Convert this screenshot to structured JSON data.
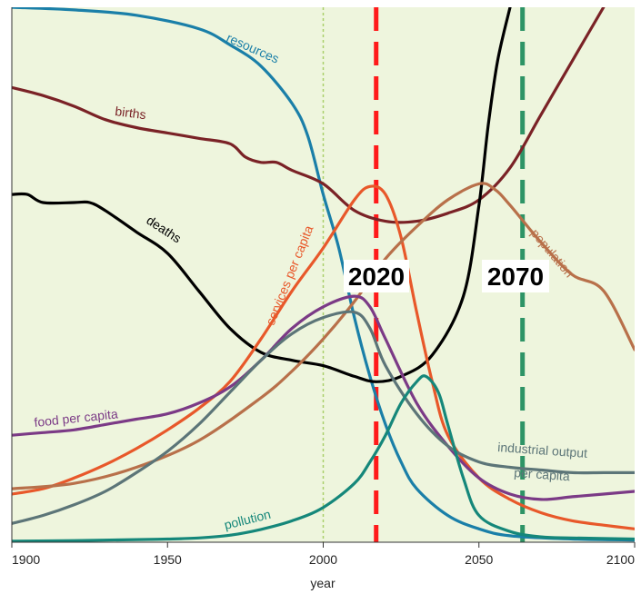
{
  "chart_data": {
    "type": "line",
    "title": "",
    "xlabel": "year",
    "ylabel": "",
    "xlim": [
      1900,
      2100
    ],
    "ylim": [
      0,
      100
    ],
    "x_ticks": [
      "1900",
      "1950",
      "2000",
      "2050",
      "2100"
    ],
    "grid": false,
    "background": "#eef5dd",
    "markers": [
      {
        "label": "2020",
        "year": 2017,
        "style": "dashed",
        "color": "#ff1a1a"
      },
      {
        "label": "2070",
        "year": 2064,
        "style": "dashed",
        "color": "#2e9466"
      },
      {
        "label": "",
        "year": 2000,
        "style": "dotted",
        "color": "#a9cf6a"
      }
    ],
    "series": [
      {
        "name": "resources",
        "color": "#1a7fa8",
        "points": [
          [
            1900,
            100
          ],
          [
            1920,
            99.5
          ],
          [
            1940,
            98.5
          ],
          [
            1960,
            96
          ],
          [
            1970,
            93
          ],
          [
            1980,
            89
          ],
          [
            1990,
            82
          ],
          [
            1995,
            76
          ],
          [
            2000,
            65
          ],
          [
            2005,
            55
          ],
          [
            2010,
            42
          ],
          [
            2015,
            31
          ],
          [
            2020,
            22
          ],
          [
            2025,
            15
          ],
          [
            2030,
            10
          ],
          [
            2040,
            5
          ],
          [
            2050,
            2.5
          ],
          [
            2060,
            1.2
          ],
          [
            2080,
            0.6
          ],
          [
            2100,
            0.4
          ]
        ]
      },
      {
        "name": "births",
        "color": "#7a2226",
        "points": [
          [
            1900,
            85
          ],
          [
            1910,
            83.5
          ],
          [
            1920,
            81.5
          ],
          [
            1930,
            79
          ],
          [
            1940,
            77.5
          ],
          [
            1950,
            76.5
          ],
          [
            1960,
            75.5
          ],
          [
            1970,
            74.5
          ],
          [
            1975,
            72
          ],
          [
            1980,
            71
          ],
          [
            1985,
            71
          ],
          [
            1990,
            69.5
          ],
          [
            2000,
            67
          ],
          [
            2010,
            62
          ],
          [
            2020,
            60
          ],
          [
            2030,
            60
          ],
          [
            2040,
            61.5
          ],
          [
            2050,
            64
          ],
          [
            2060,
            70
          ],
          [
            2070,
            80
          ],
          [
            2080,
            90
          ],
          [
            2090,
            100
          ]
        ]
      },
      {
        "name": "deaths",
        "color": "#000000",
        "points": [
          [
            1900,
            65
          ],
          [
            1905,
            65
          ],
          [
            1910,
            63.5
          ],
          [
            1920,
            63.5
          ],
          [
            1925,
            63.5
          ],
          [
            1930,
            62
          ],
          [
            1940,
            58
          ],
          [
            1950,
            54
          ],
          [
            1960,
            47
          ],
          [
            1970,
            40
          ],
          [
            1980,
            35.5
          ],
          [
            1990,
            34
          ],
          [
            2000,
            33
          ],
          [
            2010,
            31
          ],
          [
            2017,
            30
          ],
          [
            2025,
            31
          ],
          [
            2035,
            35
          ],
          [
            2045,
            46
          ],
          [
            2050,
            63
          ],
          [
            2053,
            78
          ],
          [
            2056,
            90
          ],
          [
            2060,
            100
          ]
        ]
      },
      {
        "name": "services per capita",
        "color": "#e8582a",
        "points": [
          [
            1900,
            9
          ],
          [
            1910,
            10
          ],
          [
            1920,
            12
          ],
          [
            1930,
            14.5
          ],
          [
            1940,
            17.5
          ],
          [
            1950,
            21
          ],
          [
            1960,
            25
          ],
          [
            1970,
            30
          ],
          [
            1980,
            38
          ],
          [
            1990,
            47
          ],
          [
            2000,
            55
          ],
          [
            2010,
            64
          ],
          [
            2015,
            66.5
          ],
          [
            2020,
            65
          ],
          [
            2025,
            57
          ],
          [
            2030,
            43
          ],
          [
            2035,
            30
          ],
          [
            2040,
            20
          ],
          [
            2050,
            12
          ],
          [
            2060,
            8
          ],
          [
            2070,
            5.5
          ],
          [
            2080,
            4
          ],
          [
            2090,
            3.2
          ],
          [
            2100,
            2.5
          ]
        ]
      },
      {
        "name": "population",
        "color": "#b8704a",
        "points": [
          [
            1900,
            10
          ],
          [
            1920,
            11
          ],
          [
            1940,
            14
          ],
          [
            1960,
            19
          ],
          [
            1980,
            27
          ],
          [
            1990,
            32
          ],
          [
            2000,
            38
          ],
          [
            2010,
            45
          ],
          [
            2020,
            53
          ],
          [
            2030,
            59
          ],
          [
            2040,
            64
          ],
          [
            2050,
            67
          ],
          [
            2055,
            66
          ],
          [
            2060,
            63
          ],
          [
            2070,
            56
          ],
          [
            2080,
            50
          ],
          [
            2090,
            47
          ],
          [
            2100,
            36
          ]
        ]
      },
      {
        "name": "food per capita",
        "color": "#7b3a86",
        "points": [
          [
            1900,
            20
          ],
          [
            1910,
            20.5
          ],
          [
            1920,
            21
          ],
          [
            1930,
            22
          ],
          [
            1940,
            23
          ],
          [
            1950,
            24
          ],
          [
            1960,
            26
          ],
          [
            1970,
            29
          ],
          [
            1980,
            34
          ],
          [
            1990,
            40
          ],
          [
            2000,
            44
          ],
          [
            2010,
            46
          ],
          [
            2015,
            44
          ],
          [
            2020,
            38
          ],
          [
            2030,
            26
          ],
          [
            2040,
            18
          ],
          [
            2050,
            12
          ],
          [
            2060,
            9
          ],
          [
            2070,
            8
          ],
          [
            2080,
            8.5
          ],
          [
            2090,
            9
          ],
          [
            2100,
            9.5
          ]
        ]
      },
      {
        "name": "industrial output per capita",
        "color": "#5c7578",
        "points": [
          [
            1900,
            3.5
          ],
          [
            1910,
            5
          ],
          [
            1920,
            7
          ],
          [
            1930,
            9.5
          ],
          [
            1940,
            13
          ],
          [
            1950,
            17
          ],
          [
            1960,
            22
          ],
          [
            1970,
            28
          ],
          [
            1980,
            34
          ],
          [
            1990,
            39
          ],
          [
            2000,
            42
          ],
          [
            2010,
            43
          ],
          [
            2015,
            40
          ],
          [
            2020,
            33
          ],
          [
            2030,
            24
          ],
          [
            2040,
            18
          ],
          [
            2050,
            15
          ],
          [
            2060,
            14
          ],
          [
            2070,
            13.5
          ],
          [
            2080,
            13
          ],
          [
            2090,
            13
          ],
          [
            2100,
            13
          ]
        ]
      },
      {
        "name": "pollution",
        "color": "#15877a",
        "points": [
          [
            1900,
            0.2
          ],
          [
            1920,
            0.3
          ],
          [
            1940,
            0.5
          ],
          [
            1950,
            0.6
          ],
          [
            1960,
            0.8
          ],
          [
            1970,
            1.3
          ],
          [
            1980,
            2.4
          ],
          [
            1990,
            4
          ],
          [
            2000,
            6.5
          ],
          [
            2010,
            11
          ],
          [
            2015,
            15
          ],
          [
            2020,
            20
          ],
          [
            2025,
            26
          ],
          [
            2030,
            30
          ],
          [
            2033,
            31
          ],
          [
            2037,
            28
          ],
          [
            2040,
            22
          ],
          [
            2045,
            12
          ],
          [
            2050,
            5
          ],
          [
            2060,
            2
          ],
          [
            2070,
            1
          ],
          [
            2080,
            0.8
          ],
          [
            2100,
            0.6
          ]
        ]
      }
    ],
    "series_labels": [
      {
        "text": "resources",
        "series": "resources"
      },
      {
        "text": "births",
        "series": "births"
      },
      {
        "text": "deaths",
        "series": "deaths"
      },
      {
        "text": "services per capita",
        "series": "services per capita"
      },
      {
        "text": "population",
        "series": "population"
      },
      {
        "text": "food per capita",
        "series": "food per capita"
      },
      {
        "text": "industrial output",
        "series": "industrial output per capita"
      },
      {
        "text": "per capita",
        "series": "industrial output per capita"
      },
      {
        "text": "pollution",
        "series": "pollution"
      }
    ]
  }
}
